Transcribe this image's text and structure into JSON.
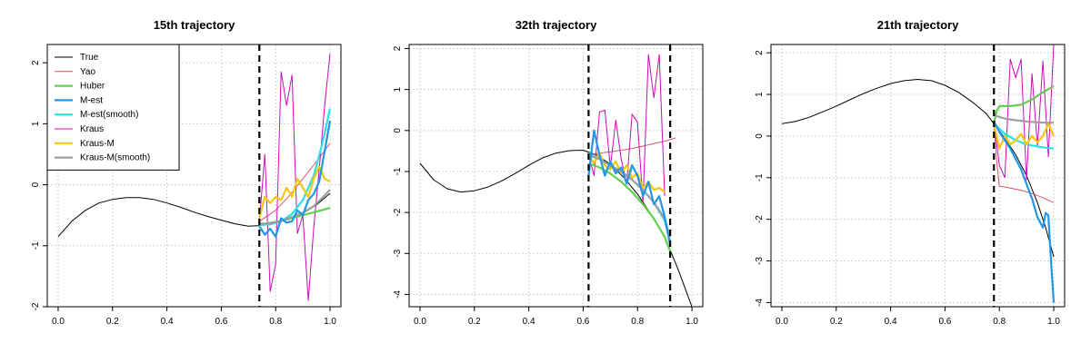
{
  "figure": {
    "colors": {
      "True": "#000000",
      "Yao": "#df536b",
      "Huber": "#61d04f",
      "M-est": "#2297e6",
      "M-est(smooth)": "#28e2e5",
      "Kraus": "#cd0bbc",
      "Kraus-M": "#f5c710",
      "Kraus-M(smooth)": "#9e9e9e",
      "grid": "#d3d3d3",
      "vline": "#000000"
    }
  },
  "legend": {
    "entries": [
      "True",
      "Yao",
      "Huber",
      "M-est",
      "M-est(smooth)",
      "Kraus",
      "Kraus-M",
      "Kraus-M(smooth)"
    ]
  },
  "chart_data": [
    {
      "type": "line",
      "title": "15th trajectory",
      "xlabel": "",
      "ylabel": "",
      "xlim": [
        0,
        1
      ],
      "ylim": [
        -2,
        2.3
      ],
      "xticks": [
        0.0,
        0.2,
        0.4,
        0.6,
        0.8,
        1.0
      ],
      "xtick_labels": [
        "0.0",
        "0.2",
        "0.4",
        "0.6",
        "0.8",
        "1.0"
      ],
      "yticks": [
        -2,
        -1,
        0,
        1,
        2
      ],
      "ytick_labels": [
        "-2",
        "-1",
        "0",
        "1",
        "2"
      ],
      "grid": true,
      "legend": "top-left",
      "vlines": [
        0.74
      ],
      "series": [
        {
          "name": "True",
          "width": 1,
          "x": [
            0,
            0.05,
            0.1,
            0.15,
            0.2,
            0.25,
            0.3,
            0.35,
            0.4,
            0.45,
            0.5,
            0.55,
            0.6,
            0.65,
            0.7,
            0.74,
            0.8,
            0.85,
            0.9,
            0.95,
            1.0
          ],
          "y": [
            -0.85,
            -0.6,
            -0.42,
            -0.3,
            -0.24,
            -0.21,
            -0.21,
            -0.24,
            -0.3,
            -0.37,
            -0.45,
            -0.52,
            -0.58,
            -0.64,
            -0.68,
            -0.67,
            -0.63,
            -0.56,
            -0.47,
            -0.33,
            -0.14
          ]
        },
        {
          "name": "Yao",
          "width": 1,
          "x": [
            0.74,
            0.8,
            0.85,
            0.9,
            0.95,
            1.0
          ],
          "y": [
            -0.6,
            -0.42,
            -0.18,
            0.1,
            0.38,
            0.68
          ]
        },
        {
          "name": "Huber",
          "width": 2,
          "x": [
            0.74,
            0.8,
            0.85,
            0.9,
            0.95,
            1.0
          ],
          "y": [
            -0.65,
            -0.61,
            -0.56,
            -0.5,
            -0.44,
            -0.38
          ]
        },
        {
          "name": "M-est",
          "width": 2,
          "x": [
            0.74,
            0.76,
            0.78,
            0.8,
            0.82,
            0.84,
            0.86,
            0.88,
            0.9,
            0.92,
            0.94,
            0.96,
            0.98,
            1.0
          ],
          "y": [
            -0.68,
            -0.82,
            -0.72,
            -0.85,
            -0.55,
            -0.62,
            -0.6,
            -0.42,
            -0.5,
            -0.25,
            -0.15,
            0.05,
            0.55,
            1.05
          ]
        },
        {
          "name": "M-est(smooth)",
          "width": 2,
          "x": [
            0.74,
            0.78,
            0.82,
            0.86,
            0.9,
            0.94,
            0.97,
            1.0
          ],
          "y": [
            -0.66,
            -0.65,
            -0.6,
            -0.48,
            -0.25,
            0.15,
            0.65,
            1.25
          ]
        },
        {
          "name": "Kraus",
          "width": 1,
          "x": [
            0.74,
            0.76,
            0.78,
            0.8,
            0.82,
            0.84,
            0.86,
            0.88,
            0.9,
            0.92,
            0.94,
            0.96,
            0.98,
            1.0
          ],
          "y": [
            -0.6,
            0.5,
            -1.75,
            -1.3,
            1.85,
            1.3,
            1.8,
            -0.8,
            -0.5,
            -1.9,
            -0.7,
            0.25,
            1.3,
            2.15
          ]
        },
        {
          "name": "Kraus-M",
          "width": 2,
          "x": [
            0.74,
            0.76,
            0.78,
            0.8,
            0.82,
            0.84,
            0.86,
            0.88,
            0.9,
            0.92,
            0.94,
            0.96,
            0.98,
            1.0
          ],
          "y": [
            -0.55,
            -0.2,
            -0.3,
            -0.2,
            -0.25,
            -0.05,
            -0.2,
            0.1,
            -0.05,
            -0.2,
            0.1,
            0.3,
            0.1,
            0.05
          ]
        },
        {
          "name": "Kraus-M(smooth)",
          "width": 2,
          "x": [
            0.74,
            0.78,
            0.82,
            0.86,
            0.9,
            0.94,
            0.97,
            1.0
          ],
          "y": [
            -0.64,
            -0.63,
            -0.6,
            -0.53,
            -0.46,
            -0.35,
            -0.22,
            -0.08
          ]
        }
      ]
    },
    {
      "type": "line",
      "title": "32th trajectory",
      "xlabel": "",
      "ylabel": "",
      "xlim": [
        0,
        1
      ],
      "ylim": [
        -4.3,
        2.1
      ],
      "xticks": [
        0.0,
        0.2,
        0.4,
        0.6,
        0.8,
        1.0
      ],
      "xtick_labels": [
        "0.0",
        "0.2",
        "0.4",
        "0.6",
        "0.8",
        "1.0"
      ],
      "yticks": [
        -4,
        -3,
        -2,
        -1,
        0,
        1,
        2
      ],
      "ytick_labels": [
        "-4",
        "-3",
        "-2",
        "-1",
        "0",
        "1",
        "2"
      ],
      "grid": true,
      "legend": "none",
      "vlines": [
        0.62,
        0.92
      ],
      "series": [
        {
          "name": "True",
          "width": 1,
          "x": [
            0,
            0.05,
            0.1,
            0.15,
            0.2,
            0.25,
            0.3,
            0.35,
            0.4,
            0.45,
            0.5,
            0.55,
            0.6,
            0.65,
            0.7,
            0.75,
            0.8,
            0.85,
            0.9,
            0.95,
            1.0
          ],
          "y": [
            -0.8,
            -1.2,
            -1.42,
            -1.5,
            -1.47,
            -1.38,
            -1.23,
            -1.05,
            -0.85,
            -0.67,
            -0.55,
            -0.49,
            -0.48,
            -0.6,
            -0.82,
            -1.15,
            -1.55,
            -2.05,
            -2.6,
            -3.4,
            -4.3
          ]
        },
        {
          "name": "Yao",
          "width": 1,
          "x": [
            0.62,
            0.66,
            0.7,
            0.74,
            0.78,
            0.82,
            0.86,
            0.9,
            0.94
          ],
          "y": [
            -0.6,
            -0.55,
            -0.52,
            -0.48,
            -0.44,
            -0.38,
            -0.32,
            -0.26,
            -0.18
          ]
        },
        {
          "name": "Huber",
          "width": 2,
          "x": [
            0.62,
            0.66,
            0.7,
            0.74,
            0.78,
            0.82,
            0.86,
            0.9,
            0.92
          ],
          "y": [
            -0.8,
            -0.9,
            -1.05,
            -1.25,
            -1.5,
            -1.8,
            -2.15,
            -2.6,
            -2.95
          ]
        },
        {
          "name": "M-est",
          "width": 2,
          "x": [
            0.62,
            0.64,
            0.66,
            0.68,
            0.7,
            0.72,
            0.74,
            0.76,
            0.78,
            0.8,
            0.82,
            0.84,
            0.86,
            0.88,
            0.9,
            0.92
          ],
          "y": [
            -1.1,
            0.0,
            -0.6,
            -1.1,
            -0.75,
            -1.05,
            -0.9,
            -1.3,
            -0.85,
            -1.1,
            -1.6,
            -1.25,
            -1.8,
            -1.6,
            -2.1,
            -2.8
          ]
        },
        {
          "name": "M-est(smooth)",
          "width": 2,
          "x": [
            0.62,
            0.66,
            0.7,
            0.74,
            0.78,
            0.82,
            0.86,
            0.9,
            0.92
          ],
          "y": [
            -0.55,
            -0.7,
            -0.85,
            -1.0,
            -1.2,
            -1.45,
            -1.75,
            -2.2,
            -2.7
          ]
        },
        {
          "name": "Kraus",
          "width": 1,
          "x": [
            0.62,
            0.64,
            0.66,
            0.68,
            0.7,
            0.72,
            0.74,
            0.76,
            0.78,
            0.8,
            0.82,
            0.84,
            0.86,
            0.88,
            0.9
          ],
          "y": [
            -0.6,
            -1.1,
            0.45,
            0.5,
            -0.9,
            0.25,
            -0.7,
            -1.3,
            0.4,
            0.2,
            -1.75,
            1.85,
            0.8,
            1.85,
            -1.6
          ]
        },
        {
          "name": "Kraus-M",
          "width": 2,
          "x": [
            0.62,
            0.64,
            0.66,
            0.68,
            0.7,
            0.72,
            0.74,
            0.76,
            0.78,
            0.8,
            0.82,
            0.84,
            0.86,
            0.88,
            0.9
          ],
          "y": [
            -0.6,
            -0.8,
            -0.55,
            -0.85,
            -0.95,
            -0.75,
            -1.05,
            -0.85,
            -1.15,
            -1.05,
            -1.4,
            -1.25,
            -1.45,
            -1.4,
            -1.5
          ]
        },
        {
          "name": "Kraus-M(smooth)",
          "width": 2,
          "x": [
            0.62,
            0.66,
            0.7,
            0.74,
            0.78,
            0.82,
            0.86,
            0.9,
            0.92
          ],
          "y": [
            -0.6,
            -0.7,
            -0.85,
            -1.0,
            -1.2,
            -1.45,
            -1.75,
            -2.15,
            -2.6
          ]
        }
      ]
    },
    {
      "type": "line",
      "title": "21th trajectory",
      "xlabel": "",
      "ylabel": "",
      "xlim": [
        0,
        1
      ],
      "ylim": [
        -4.1,
        2.2
      ],
      "xticks": [
        0.0,
        0.2,
        0.4,
        0.6,
        0.8,
        1.0
      ],
      "xtick_labels": [
        "0.0",
        "0.2",
        "0.4",
        "0.6",
        "0.8",
        "1.0"
      ],
      "yticks": [
        -4,
        -3,
        -2,
        -1,
        0,
        1,
        2
      ],
      "ytick_labels": [
        "-4",
        "-3",
        "-2",
        "-1",
        "0",
        "1",
        "2"
      ],
      "grid": true,
      "legend": "none",
      "vlines": [
        0.78
      ],
      "series": [
        {
          "name": "True",
          "width": 1,
          "x": [
            0,
            0.05,
            0.1,
            0.15,
            0.2,
            0.25,
            0.3,
            0.35,
            0.4,
            0.45,
            0.5,
            0.55,
            0.6,
            0.65,
            0.7,
            0.75,
            0.78,
            0.82,
            0.86,
            0.9,
            0.94,
            0.97,
            1.0
          ],
          "y": [
            0.3,
            0.35,
            0.45,
            0.58,
            0.72,
            0.87,
            1.02,
            1.15,
            1.26,
            1.33,
            1.36,
            1.33,
            1.22,
            1.05,
            0.82,
            0.55,
            0.3,
            -0.05,
            -0.45,
            -0.95,
            -1.6,
            -2.2,
            -2.9
          ]
        },
        {
          "name": "Yao",
          "width": 1,
          "x": [
            0.78,
            0.79,
            0.8,
            0.84,
            0.88,
            0.92,
            0.96,
            1.0
          ],
          "y": [
            0.3,
            -0.6,
            -1.2,
            -1.25,
            -1.3,
            -1.38,
            -1.48,
            -1.6
          ]
        },
        {
          "name": "Huber",
          "width": 2,
          "x": [
            0.78,
            0.79,
            0.8,
            0.84,
            0.88,
            0.92,
            0.96,
            1.0
          ],
          "y": [
            0.3,
            0.6,
            0.72,
            0.72,
            0.75,
            0.88,
            1.05,
            1.2
          ]
        },
        {
          "name": "M-est",
          "width": 2,
          "x": [
            0.78,
            0.8,
            0.82,
            0.84,
            0.86,
            0.88,
            0.9,
            0.92,
            0.94,
            0.96,
            0.97,
            0.98,
            0.99,
            1.0
          ],
          "y": [
            0.35,
            0.1,
            -0.1,
            -0.3,
            -0.55,
            -0.8,
            -1.15,
            -1.5,
            -1.95,
            -2.2,
            -1.85,
            -1.9,
            -3.0,
            -4.0
          ]
        },
        {
          "name": "M-est(smooth)",
          "width": 2,
          "x": [
            0.78,
            0.82,
            0.86,
            0.9,
            0.94,
            0.97,
            1.0
          ],
          "y": [
            0.3,
            0.05,
            -0.1,
            -0.2,
            -0.25,
            -0.28,
            -0.3
          ]
        },
        {
          "name": "Kraus",
          "width": 1,
          "x": [
            0.78,
            0.8,
            0.82,
            0.84,
            0.86,
            0.88,
            0.9,
            0.92,
            0.94,
            0.96,
            0.98,
            1.0
          ],
          "y": [
            0.35,
            -0.7,
            -1.0,
            1.85,
            1.4,
            1.85,
            -1.05,
            1.5,
            -0.25,
            1.8,
            -0.5,
            2.2
          ]
        },
        {
          "name": "Kraus-M",
          "width": 2,
          "x": [
            0.78,
            0.8,
            0.82,
            0.84,
            0.86,
            0.88,
            0.9,
            0.92,
            0.94,
            0.96,
            0.98,
            1.0
          ],
          "y": [
            0.3,
            -0.3,
            0.0,
            -0.2,
            -0.1,
            0.05,
            -0.2,
            0.0,
            -0.15,
            0.0,
            0.3,
            0.0
          ]
        },
        {
          "name": "Kraus-M(smooth)",
          "width": 2,
          "x": [
            0.78,
            0.82,
            0.86,
            0.9,
            0.94,
            0.97,
            1.0
          ],
          "y": [
            0.5,
            0.42,
            0.38,
            0.35,
            0.33,
            0.32,
            0.32
          ]
        }
      ]
    }
  ]
}
